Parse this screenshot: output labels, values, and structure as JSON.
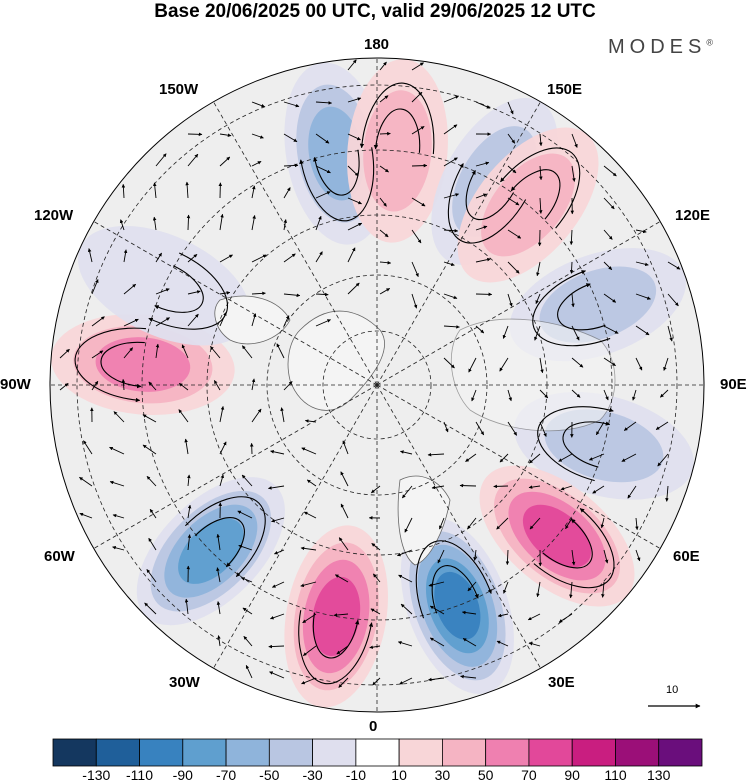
{
  "title": "Base 20/06/2025 00 UTC, valid 29/06/2025 12 UTC",
  "brand": "MODES",
  "brand_mark": "®",
  "lon_labels": {
    "top": "180",
    "bottom": "0",
    "left": "90W",
    "right": "90E",
    "nw_upper": "150W",
    "nw_lower": "120W",
    "ne_upper": "150E",
    "ne_lower": "120E",
    "sw_upper": "60W",
    "sw_lower": "30W",
    "se_upper": "60E",
    "se_lower": "30E"
  },
  "vector_scale": {
    "value": "10"
  },
  "colorbar": {
    "labels": [
      "-130",
      "-110",
      "-90",
      "-70",
      "-50",
      "-30",
      "-10",
      "10",
      "30",
      "50",
      "70",
      "90",
      "110",
      "130"
    ],
    "colors": [
      "#14375f",
      "#1f5f9a",
      "#3882bf",
      "#5f9fcf",
      "#8fb4db",
      "#b9c6e2",
      "#dfdfee",
      "#ffffff",
      "#f8d6d8",
      "#f5b4c3",
      "#ef80b0",
      "#e2489a",
      "#c91e80",
      "#9b0f78",
      "#6a0e7c"
    ]
  },
  "map": {
    "projection": "north polar stereographic",
    "background_color": "#eeeeee",
    "anomaly_centers": [
      {
        "lon": "170W",
        "sign": "negative",
        "level": -60
      },
      {
        "lon": "175E",
        "sign": "positive",
        "level": 50
      },
      {
        "lon": "150E",
        "sign": "negative",
        "level": -40
      },
      {
        "lon": "140E",
        "sign": "positive",
        "level": 40
      },
      {
        "lon": "110E",
        "sign": "negative",
        "level": -50
      },
      {
        "lon": "75E",
        "sign": "negative",
        "level": -50
      },
      {
        "lon": "50E",
        "sign": "positive",
        "level": 80
      },
      {
        "lon": "20E",
        "sign": "negative",
        "level": -100
      },
      {
        "lon": "10W",
        "sign": "positive",
        "level": 80
      },
      {
        "lon": "45W",
        "sign": "negative",
        "level": -80
      },
      {
        "lon": "95W",
        "sign": "positive",
        "level": 60
      },
      {
        "lon": "115W",
        "sign": "negative",
        "level": -30
      }
    ]
  }
}
